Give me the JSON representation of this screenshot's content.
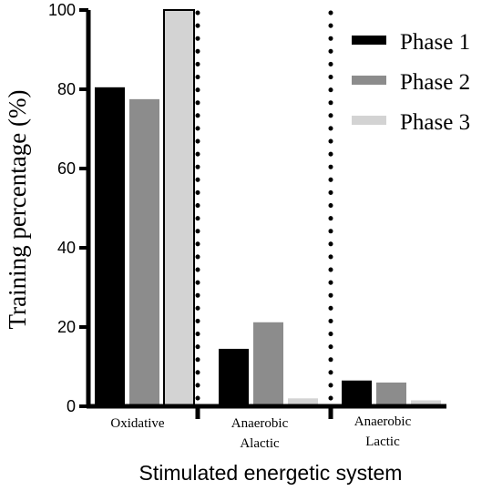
{
  "chart_data": {
    "type": "bar",
    "categories": [
      "Oxidative",
      "Anaerobic Alactic",
      "Anaerobic Lactic"
    ],
    "category_lines": [
      [
        "Oxidative"
      ],
      [
        "Anaerobic",
        "Alactic"
      ],
      [
        "Anaerobic",
        "Lactic"
      ]
    ],
    "series": [
      {
        "name": "Phase 1",
        "color": "#000000",
        "values": [
          80.5,
          14.5,
          6.5
        ]
      },
      {
        "name": "Phase 2",
        "color": "#8c8c8c",
        "values": [
          77.5,
          21.2,
          6.0
        ]
      },
      {
        "name": "Phase 3",
        "color": "#d3d3d3",
        "values": [
          100,
          2.0,
          1.5
        ]
      }
    ],
    "xlabel": "Stimulated energetic system",
    "ylabel": "Training percentage (%)",
    "ylim": [
      0,
      100
    ],
    "yticks": [
      0,
      20,
      40,
      60,
      80,
      100
    ],
    "grid": false,
    "legend": "top-right",
    "separators": "dotted"
  }
}
